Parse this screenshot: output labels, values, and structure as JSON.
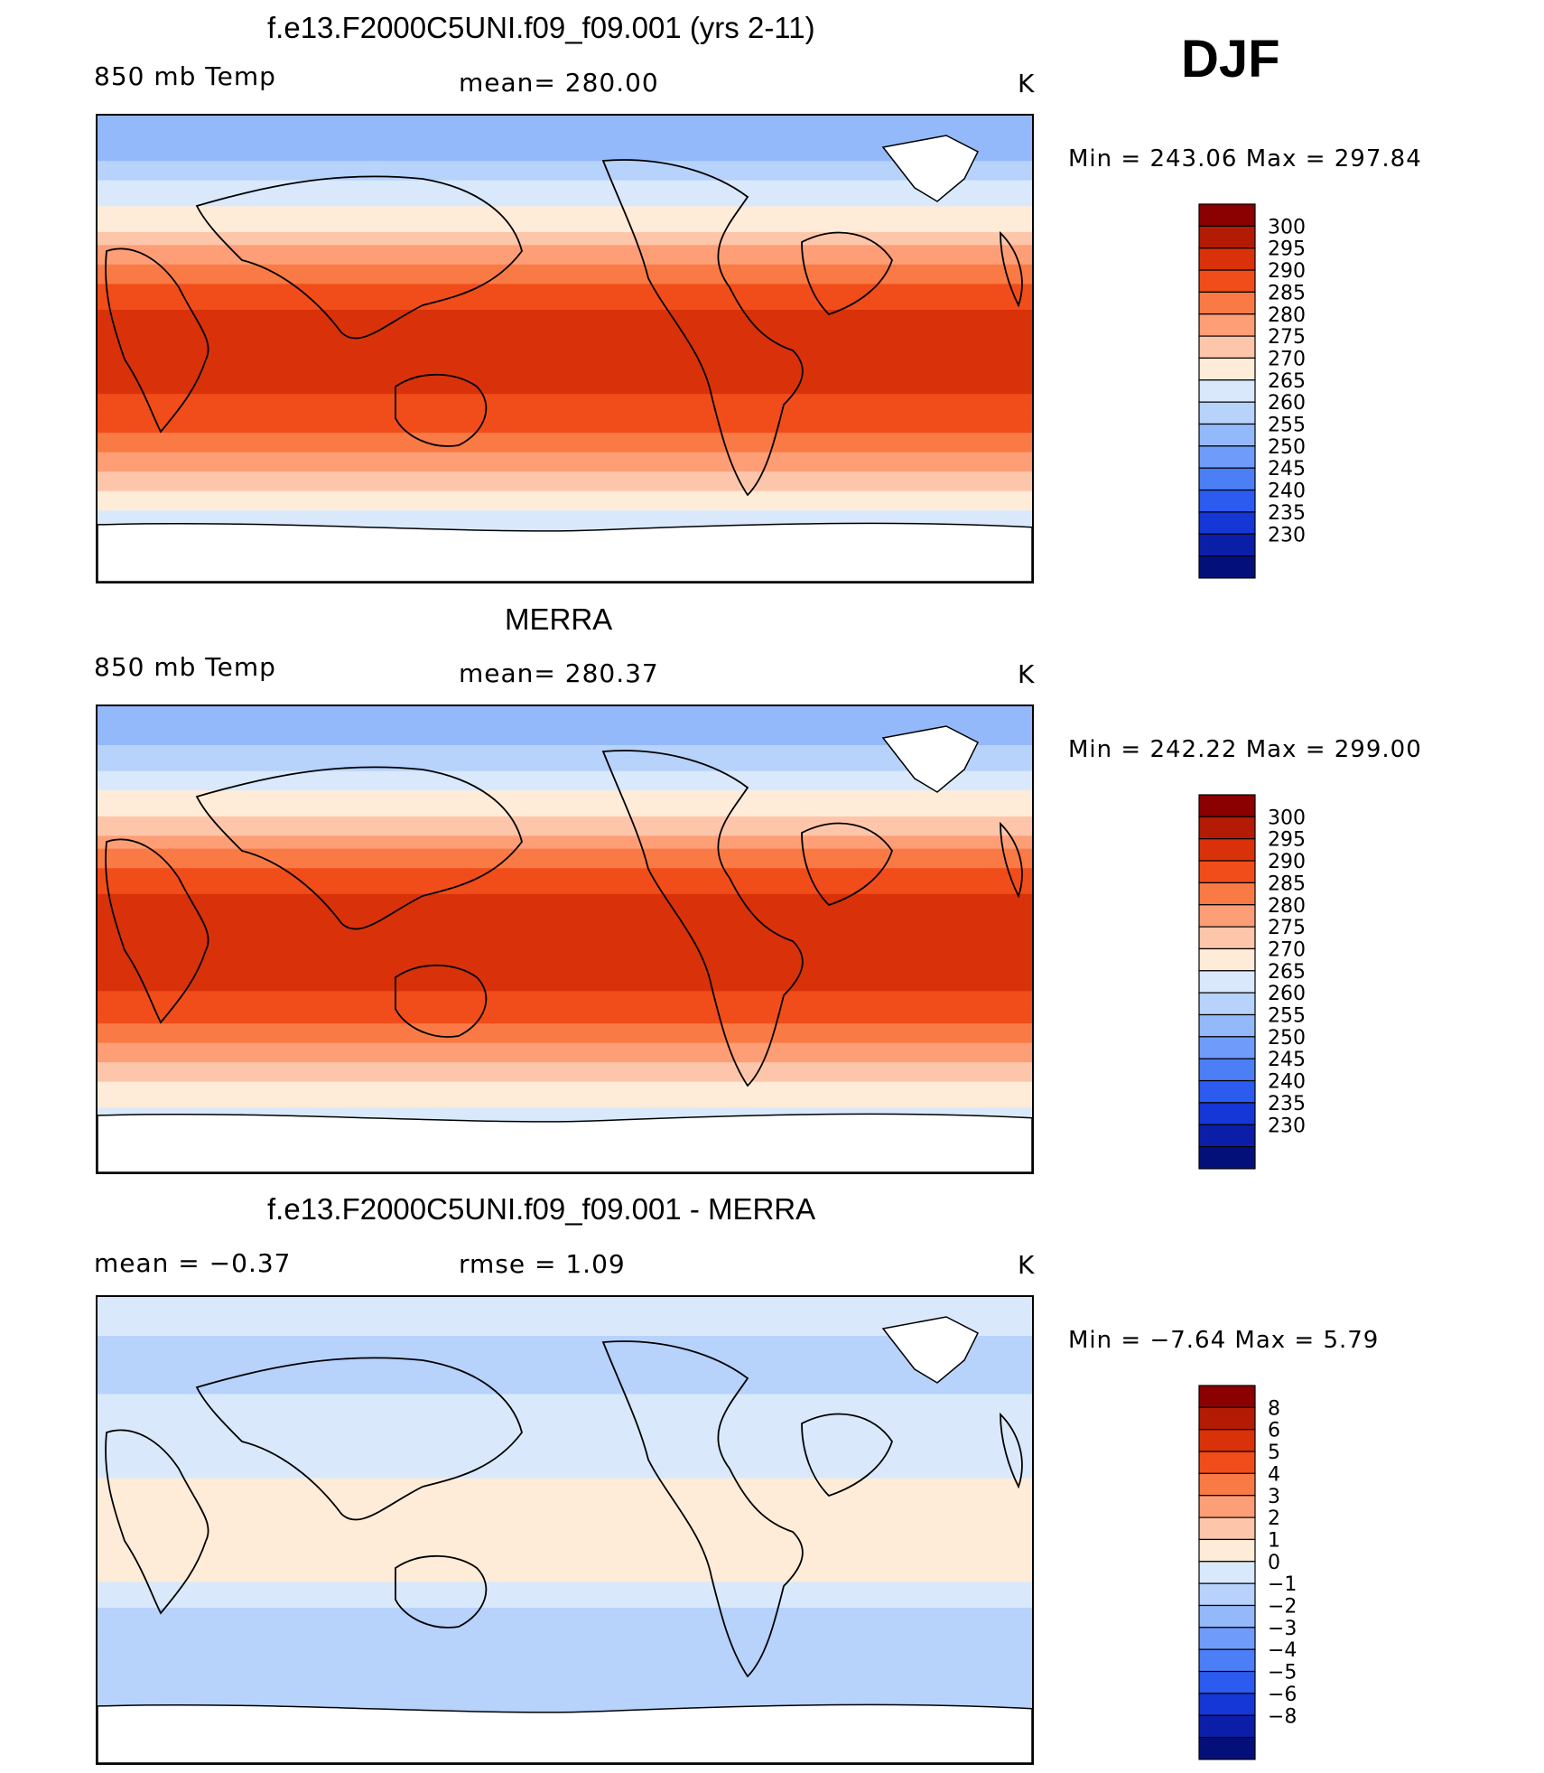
{
  "season": "DJF",
  "panels": [
    {
      "title": "f.e13.F2000C5UNI.f09_f09.001 (yrs 2-11)",
      "left_label": "850 mb Temp",
      "mid_label": "mean=  280.00",
      "units": "K",
      "min_max": "Min  =  243.06  Max  =  297.84"
    },
    {
      "title": "MERRA",
      "left_label": "850 mb Temp",
      "mid_label": "mean=  280.37",
      "units": "K",
      "min_max": "Min  =  242.22  Max  =  299.00"
    },
    {
      "title": "f.e13.F2000C5UNI.f09_f09.001 - MERRA",
      "left_label": "mean  =    −0.37",
      "mid_label": "rmse  =     1.09",
      "units": "K",
      "min_max": "Min  =    −7.64  Max  =      5.79"
    }
  ],
  "chart_data": [
    {
      "type": "heatmap",
      "title": "f.e13.F2000C5UNI.f09_f09.001 (yrs 2-11)",
      "variable": "850 mb Temp",
      "units": "K",
      "mean": 280.0,
      "min": 243.06,
      "max": 297.84,
      "colorbar_ticks": [
        "300",
        "295",
        "290",
        "285",
        "280",
        "275",
        "270",
        "265",
        "260",
        "255",
        "250",
        "245",
        "240",
        "235",
        "230"
      ],
      "colors": [
        "#8b0000",
        "#b31b05",
        "#d9320a",
        "#f14d1a",
        "#fa7a45",
        "#fd9e77",
        "#fdc6aa",
        "#feecd8",
        "#d9e9fb",
        "#b7d2fb",
        "#94b9fb",
        "#6f9cfb",
        "#4c7ef6",
        "#2b5bef",
        "#1437d6",
        "#0b1ea8",
        "#04107a"
      ],
      "zonal_mean_profile": {
        "lat": [
          90,
          75,
          60,
          45,
          30,
          15,
          0,
          -15,
          -30,
          -45,
          -60,
          -75,
          -90
        ],
        "values": [
          250,
          254,
          262,
          270,
          282,
          290,
          292,
          291,
          286,
          276,
          266,
          258,
          250
        ]
      }
    },
    {
      "type": "heatmap",
      "title": "MERRA",
      "variable": "850 mb Temp",
      "units": "K",
      "mean": 280.37,
      "min": 242.22,
      "max": 299.0,
      "colorbar_ticks": [
        "300",
        "295",
        "290",
        "285",
        "280",
        "275",
        "270",
        "265",
        "260",
        "255",
        "250",
        "245",
        "240",
        "235",
        "230"
      ],
      "colors": [
        "#8b0000",
        "#b31b05",
        "#d9320a",
        "#f14d1a",
        "#fa7a45",
        "#fd9e77",
        "#fdc6aa",
        "#feecd8",
        "#d9e9fb",
        "#b7d2fb",
        "#94b9fb",
        "#6f9cfb",
        "#4c7ef6",
        "#2b5bef",
        "#1437d6",
        "#0b1ea8",
        "#04107a"
      ],
      "zonal_mean_profile": {
        "lat": [
          90,
          75,
          60,
          45,
          30,
          15,
          0,
          -15,
          -30,
          -45,
          -60,
          -75,
          -90
        ],
        "values": [
          251,
          255,
          263,
          271,
          283,
          291,
          293,
          292,
          287,
          277,
          267,
          259,
          251
        ]
      }
    },
    {
      "type": "heatmap",
      "title": "f.e13.F2000C5UNI.f09_f09.001 - MERRA",
      "variable": "850 mb Temp difference",
      "units": "K",
      "mean": -0.37,
      "rmse": 1.09,
      "min": -7.64,
      "max": 5.79,
      "colorbar_ticks": [
        "8",
        "6",
        "5",
        "4",
        "3",
        "2",
        "1",
        "0",
        "−1",
        "−2",
        "−3",
        "−4",
        "−5",
        "−6",
        "−8"
      ],
      "colors": [
        "#8b0000",
        "#b31b05",
        "#d9320a",
        "#f14d1a",
        "#fa7a45",
        "#fd9e77",
        "#fdc6aa",
        "#feecd8",
        "#d9e9fb",
        "#b7d2fb",
        "#94b9fb",
        "#6f9cfb",
        "#4c7ef6",
        "#2b5bef",
        "#1437d6",
        "#0b1ea8",
        "#04107a"
      ],
      "zonal_mean_profile": {
        "lat": [
          90,
          75,
          60,
          45,
          30,
          15,
          0,
          -15,
          -30,
          -45,
          -60,
          -75,
          -90
        ],
        "values": [
          0,
          -1,
          -1.5,
          -0.5,
          -1,
          0.5,
          0.5,
          0.5,
          -1,
          -2,
          -1.5,
          -1,
          0
        ]
      }
    }
  ]
}
